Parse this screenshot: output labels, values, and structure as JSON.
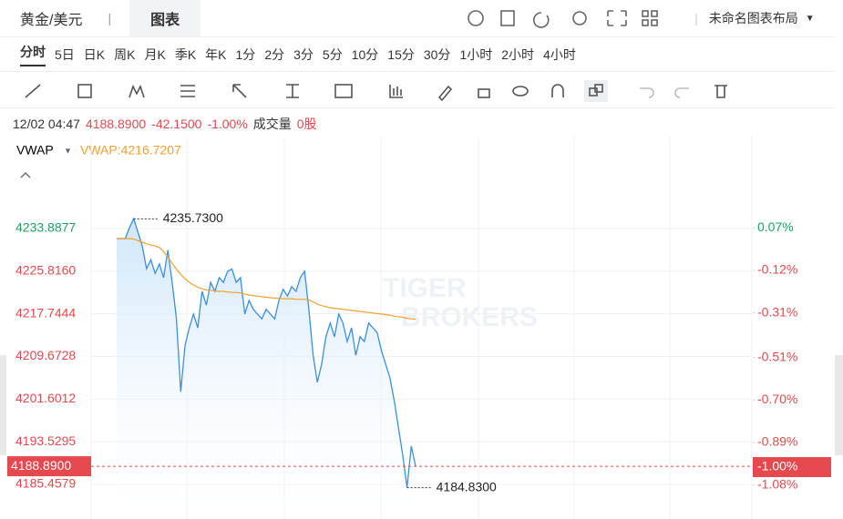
{
  "header": {
    "symbol": "黄金/美元",
    "active_tab": "图表",
    "layout_menu": "未命名图表布局"
  },
  "intervals": [
    "分时",
    "5日",
    "日K",
    "周K",
    "月K",
    "季K",
    "年K",
    "1分",
    "2分",
    "3分",
    "5分",
    "10分",
    "15分",
    "30分",
    "1小时",
    "2小时",
    "4小时"
  ],
  "quote": {
    "time": "12/02 04:47",
    "price": "4188.8900",
    "change": "-42.1500",
    "change_pct": "-1.00%",
    "volume_label": "成交量",
    "volume": "0股"
  },
  "watermark": [
    "TIGER",
    "BROKERS"
  ],
  "chart_data": {
    "type": "line",
    "ylim": [
      4179.77,
      4251.3
    ],
    "yticks": [
      4233.8877,
      {
        "value": 4225.816,
        "label": "4225.8160"
      },
      4217.7444,
      4209.6728,
      {
        "value": 4201.6012,
        "label": "4201.6012"
      },
      4193.5295,
      4185.4579
    ],
    "y2lim": [
      -1.2118,
      0.4788
    ],
    "y2ticks": [
      {
        "value": 0.07,
        "label": "0.07%"
      },
      {
        "value": -0.12,
        "label": "-0.12%"
      },
      {
        "value": -0.31,
        "label": "-0.31%"
      },
      {
        "value": -0.51,
        "label": "-0.51%"
      },
      {
        "value": -0.7,
        "label": "-0.70%"
      },
      {
        "value": -0.89,
        "label": "-0.89%"
      },
      {
        "value": -1.08,
        "label": "-1.08%"
      }
    ],
    "up_color": "#1aa260",
    "down_color": "#e5484d",
    "series": [
      {
        "color": "#3b8fe0",
        "values": [
          4232.0,
          4232.0,
          4232.0,
          4234.1,
          4235.73,
          4233.2,
          4230.6,
          4226.3,
          4228.0,
          4225.4,
          4227.2,
          4224.6,
          4229.8,
          4223.7,
          4216.8,
          4203.0,
          4211.7,
          4215.1,
          4217.7,
          4215.1,
          4222.0,
          4219.4,
          4223.7,
          4222.0,
          4224.6,
          4223.7,
          4225.8,
          4226.2,
          4223.7,
          4224.6,
          4217.7,
          4220.3,
          4218.6,
          4217.7,
          4216.8,
          4218.6,
          4217.7,
          4216.8,
          4220.3,
          4222.4,
          4221.1,
          4222.9,
          4222.0,
          4224.6,
          4225.8,
          4218.6,
          4210.0,
          4204.8,
          4208.2,
          4213.4,
          4216.0,
          4213.4,
          4217.7,
          4216.0,
          4212.5,
          4215.1,
          4209.9,
          4213.4,
          4212.5,
          4216.0,
          4215.1,
          4214.2,
          4210.8,
          4208.2,
          4205.6,
          4201.3,
          4196.1,
          4191.0,
          4184.83,
          4192.7,
          4188.89
        ]
      },
      {
        "name": "VWAP",
        "value_label": "VWAP:4216.7207",
        "color": "#f0a030",
        "values": [
          4232.0,
          4232.0,
          4232.0,
          4232.0,
          4231.9,
          4231.6,
          4231.3,
          4231.0,
          4230.8,
          4230.6,
          4230.3,
          4229.5,
          4228.5,
          4227.3,
          4226.2,
          4225.2,
          4224.4,
          4223.7,
          4223.2,
          4222.8,
          4222.5,
          4222.3,
          4222.2,
          4222.1,
          4222.0,
          4222.0,
          4221.9,
          4221.8,
          4221.8,
          4221.7,
          4221.5,
          4221.3,
          4221.2,
          4221.1,
          4221.0,
          4220.9,
          4220.8,
          4220.7,
          4220.7,
          4220.6,
          4220.6,
          4220.6,
          4220.5,
          4220.5,
          4220.5,
          4220.4,
          4220.0,
          4219.6,
          4219.3,
          4219.1,
          4218.9,
          4218.8,
          4218.7,
          4218.6,
          4218.5,
          4218.4,
          4218.3,
          4218.2,
          4218.1,
          4218.0,
          4217.9,
          4217.8,
          4217.7,
          4217.6,
          4217.5,
          4217.3,
          4217.2,
          4217.1,
          4216.9,
          4216.8,
          4216.7207
        ]
      }
    ],
    "annotations": [
      {
        "value": 4235.73,
        "label": "4235.7300"
      },
      {
        "value": 4184.83,
        "label": "4184.8300"
      }
    ],
    "current": {
      "value": 4188.89,
      "label": "4188.8900",
      "pct": -1.0,
      "pct_label": "-1.00%"
    }
  }
}
